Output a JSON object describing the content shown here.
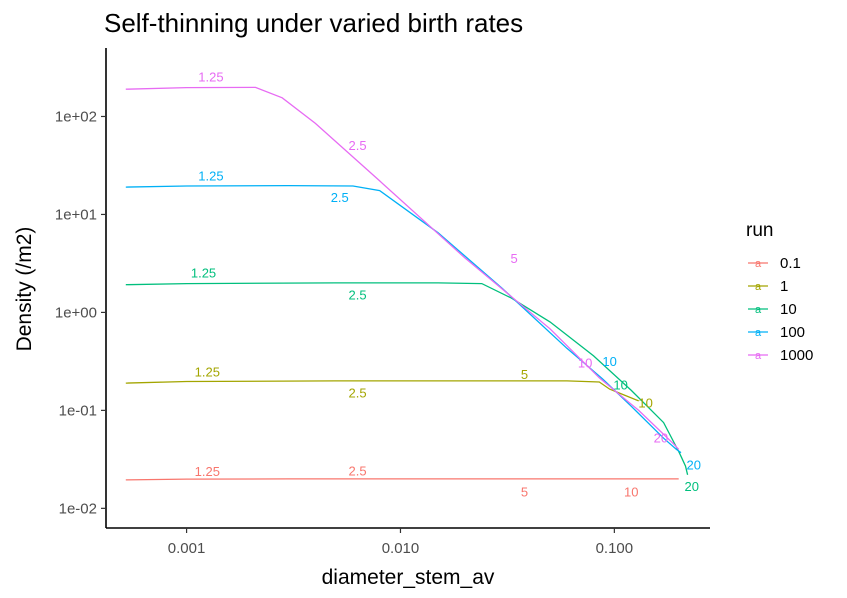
{
  "chart_data": {
    "type": "line",
    "title": "Self-thinning under varied birth rates",
    "xlabel": "diameter_stem_av",
    "ylabel": "Density (/m2)",
    "x_scale": "log10",
    "y_scale": "log10",
    "xlim": [
      0.00042,
      0.28
    ],
    "ylim": [
      0.0063,
      500
    ],
    "x_ticks": [
      0.001,
      0.01,
      0.1
    ],
    "x_tick_labels": [
      "0.001",
      "0.010",
      "0.100"
    ],
    "y_ticks": [
      0.01,
      0.1,
      1,
      10,
      100
    ],
    "y_tick_labels": [
      "1e-02",
      "1e-01",
      "1e+00",
      "1e+01",
      "1e+02"
    ],
    "grid": false,
    "legend_title": "run",
    "legend_position": "right",
    "legend_key_glyph": "a",
    "series": [
      {
        "name": "0.1",
        "color": "#F8766D",
        "points": [
          [
            0.00052,
            0.0195
          ],
          [
            0.001,
            0.0199
          ],
          [
            0.003,
            0.02
          ],
          [
            0.01,
            0.02
          ],
          [
            0.05,
            0.02
          ],
          [
            0.1,
            0.02
          ],
          [
            0.2,
            0.02
          ]
        ],
        "labels": [
          {
            "text": "1.25",
            "x": 0.00125,
            "y": 0.0235
          },
          {
            "text": "2.5",
            "x": 0.0063,
            "y": 0.0237
          },
          {
            "text": "5",
            "x": 0.038,
            "y": 0.0145
          },
          {
            "text": "10",
            "x": 0.12,
            "y": 0.0145
          }
        ]
      },
      {
        "name": "1",
        "color": "#A3A500",
        "points": [
          [
            0.00052,
            0.19
          ],
          [
            0.001,
            0.197
          ],
          [
            0.005,
            0.2
          ],
          [
            0.02,
            0.2
          ],
          [
            0.06,
            0.2
          ],
          [
            0.085,
            0.195
          ],
          [
            0.095,
            0.165
          ],
          [
            0.11,
            0.145
          ],
          [
            0.13,
            0.125
          ]
        ],
        "labels": [
          {
            "text": "1.25",
            "x": 0.00125,
            "y": 0.245
          },
          {
            "text": "2.5",
            "x": 0.0063,
            "y": 0.148
          },
          {
            "text": "5",
            "x": 0.038,
            "y": 0.23
          },
          {
            "text": "10",
            "x": 0.14,
            "y": 0.117
          }
        ]
      },
      {
        "name": "10",
        "color": "#00BF7D",
        "points": [
          [
            0.00052,
            1.92
          ],
          [
            0.001,
            1.97
          ],
          [
            0.005,
            2.0
          ],
          [
            0.015,
            2.0
          ],
          [
            0.024,
            1.97
          ],
          [
            0.033,
            1.4
          ],
          [
            0.05,
            0.8
          ],
          [
            0.08,
            0.36
          ],
          [
            0.12,
            0.16
          ],
          [
            0.17,
            0.075
          ],
          [
            0.2,
            0.038
          ],
          [
            0.205,
            0.034
          ],
          [
            0.215,
            0.027
          ],
          [
            0.22,
            0.022
          ]
        ],
        "labels": [
          {
            "text": "1.25",
            "x": 0.0012,
            "y": 2.5
          },
          {
            "text": "2.5",
            "x": 0.0063,
            "y": 1.48
          },
          {
            "text": "10",
            "x": 0.107,
            "y": 0.18
          },
          {
            "text": "20",
            "x": 0.23,
            "y": 0.0165
          }
        ]
      },
      {
        "name": "100",
        "color": "#00B0F6",
        "points": [
          [
            0.00052,
            19
          ],
          [
            0.001,
            19.5
          ],
          [
            0.003,
            19.7
          ],
          [
            0.006,
            19.5
          ],
          [
            0.008,
            17.5
          ],
          [
            0.015,
            6.5
          ],
          [
            0.03,
            1.75
          ],
          [
            0.06,
            0.43
          ],
          [
            0.088,
            0.21
          ],
          [
            0.12,
            0.11
          ],
          [
            0.17,
            0.052
          ],
          [
            0.195,
            0.04
          ],
          [
            0.205,
            0.037
          ]
        ],
        "labels": [
          {
            "text": "1.25",
            "x": 0.0013,
            "y": 24.5
          },
          {
            "text": "2.5",
            "x": 0.0052,
            "y": 14.8
          },
          {
            "text": "10",
            "x": 0.095,
            "y": 0.31
          },
          {
            "text": "20",
            "x": 0.235,
            "y": 0.0275
          }
        ]
      },
      {
        "name": "1000",
        "color": "#E76BF3",
        "points": [
          [
            0.00052,
            190
          ],
          [
            0.001,
            197
          ],
          [
            0.0021,
            198
          ],
          [
            0.0028,
            155
          ],
          [
            0.004,
            85
          ],
          [
            0.008,
            22
          ],
          [
            0.02,
            3.6
          ],
          [
            0.05,
            0.68
          ],
          [
            0.085,
            0.215
          ],
          [
            0.13,
            0.1
          ],
          [
            0.19,
            0.045
          ],
          [
            0.2,
            0.04
          ]
        ],
        "labels": [
          {
            "text": "1.25",
            "x": 0.0013,
            "y": 250
          },
          {
            "text": "2.5",
            "x": 0.0063,
            "y": 50
          },
          {
            "text": "5",
            "x": 0.034,
            "y": 3.5
          },
          {
            "text": "10",
            "x": 0.073,
            "y": 0.3
          },
          {
            "text": "20",
            "x": 0.165,
            "y": 0.0515
          }
        ]
      }
    ]
  }
}
